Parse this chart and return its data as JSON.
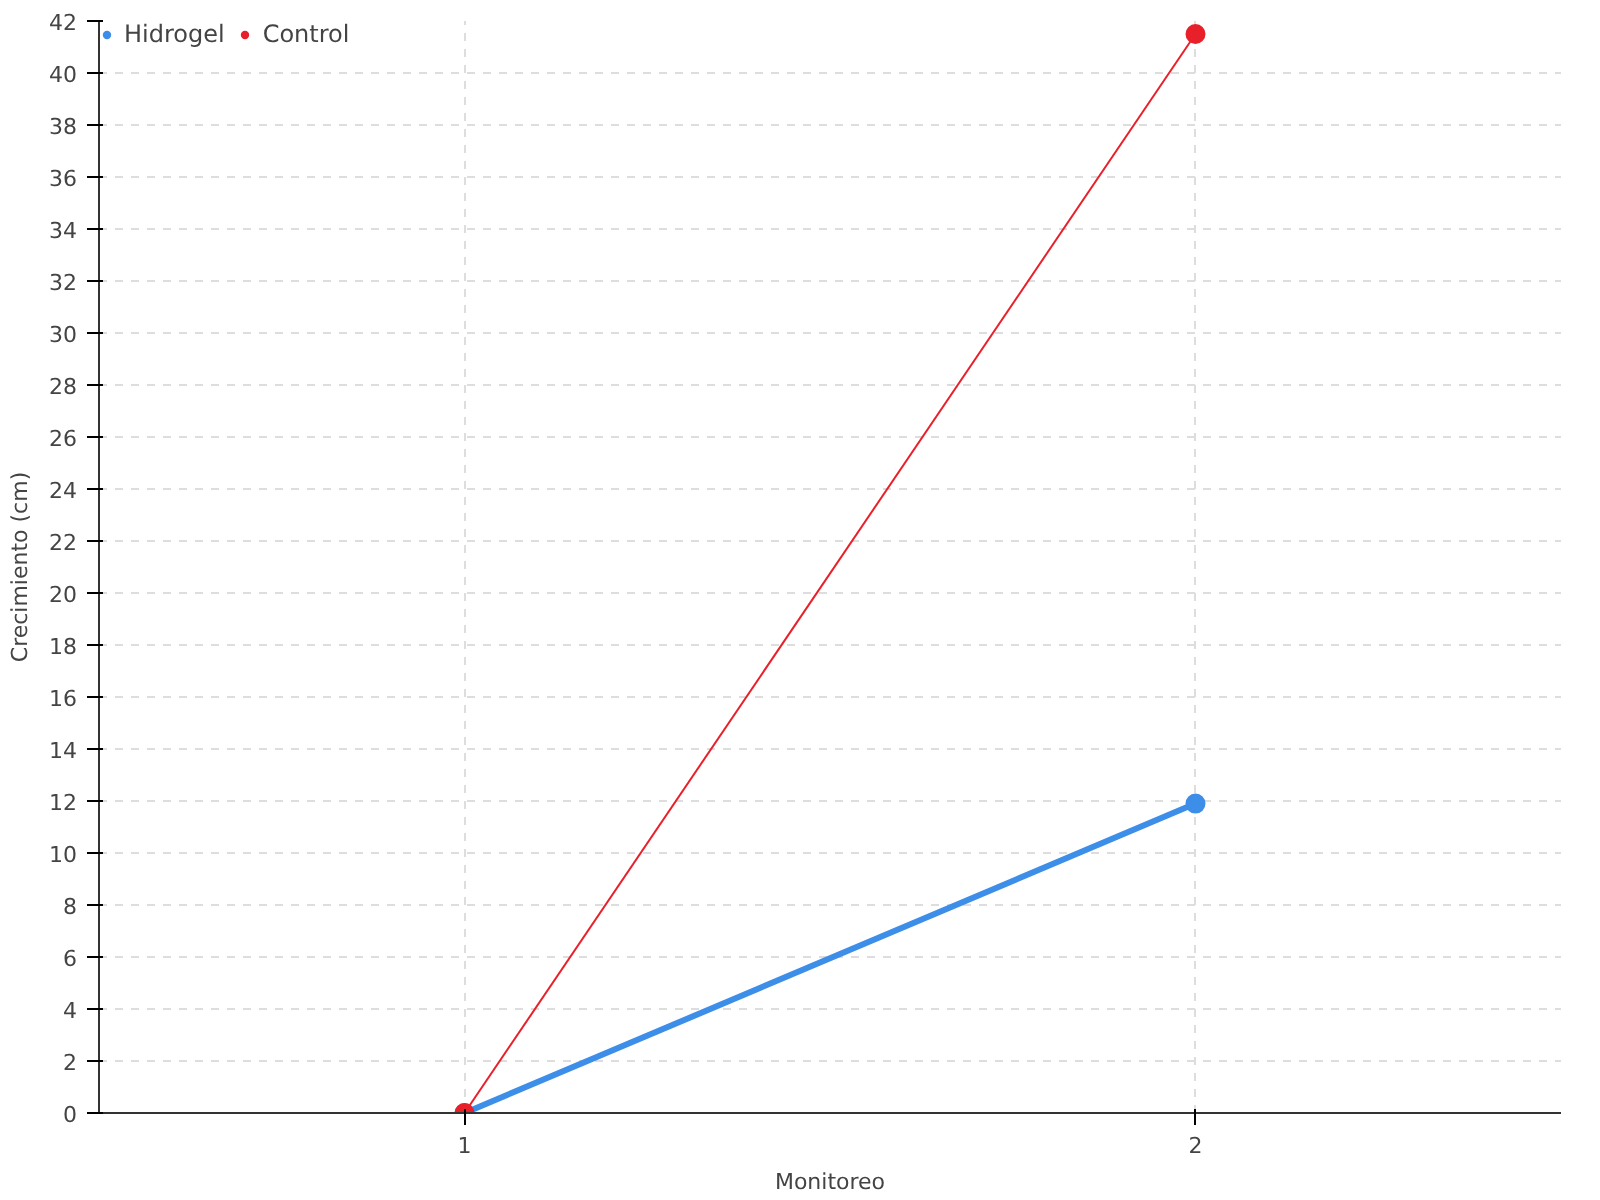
{
  "chart_data": {
    "type": "line",
    "xlabel": "Monitoreo",
    "ylabel": "Crecimiento (cm)",
    "x": [
      1,
      2
    ],
    "series": [
      {
        "name": "Hidrogel",
        "color": "#3d8ee8",
        "values": [
          0,
          11.9
        ]
      },
      {
        "name": "Control",
        "color": "#e8202a",
        "values": [
          0,
          41.5
        ]
      }
    ],
    "xlim": [
      0.5,
      2.5
    ],
    "xticks": [
      1,
      2
    ],
    "ylim": [
      0,
      42
    ],
    "yticks": [
      0,
      2,
      4,
      6,
      8,
      10,
      12,
      14,
      16,
      18,
      20,
      22,
      24,
      26,
      28,
      30,
      32,
      34,
      36,
      38,
      40,
      42
    ],
    "grid": true,
    "legend": "top left",
    "marker": "circle",
    "line_style": "solid"
  }
}
